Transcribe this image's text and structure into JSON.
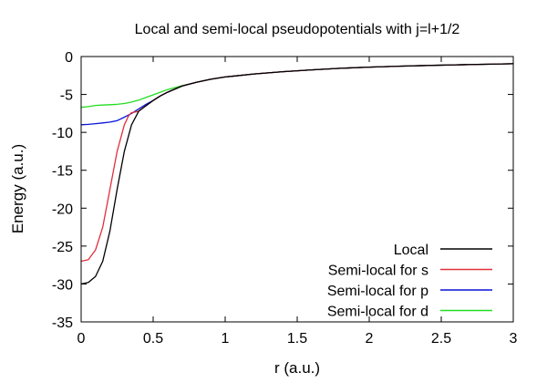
{
  "chart_data": {
    "type": "line",
    "title": "Local and semi-local pseudopotentials with j=l+1/2",
    "xlabel": "r (a.u.)",
    "ylabel": "Energy (a.u.)",
    "xlim": [
      0,
      3
    ],
    "ylim": [
      -35,
      0
    ],
    "xticks": [
      0,
      0.5,
      1,
      1.5,
      2,
      2.5,
      3
    ],
    "xtick_labels": [
      "0",
      "0.5",
      "1",
      "1.5",
      "2",
      "2.5",
      "3"
    ],
    "yticks": [
      0,
      -5,
      -10,
      -15,
      -20,
      -25,
      -30,
      -35
    ],
    "ytick_labels": [
      "0",
      "-5",
      "-10",
      "-15",
      "-20",
      "-25",
      "-30",
      "-35"
    ],
    "grid": false,
    "legend_position": "bottom-right",
    "series": [
      {
        "name": "Local",
        "color": "#000000",
        "x": [
          0,
          0.05,
          0.1,
          0.15,
          0.2,
          0.25,
          0.3,
          0.35,
          0.4,
          0.45,
          0.5,
          0.55,
          0.6,
          0.7,
          0.8,
          0.9,
          1.0,
          1.2,
          1.4,
          1.6,
          1.8,
          2.0,
          2.2,
          2.4,
          2.6,
          2.8,
          3.0
        ],
        "y": [
          -30.0,
          -29.8,
          -29.0,
          -27.0,
          -23.0,
          -17.5,
          -12.5,
          -9.0,
          -7.2,
          -6.5,
          -5.8,
          -5.2,
          -4.7,
          -3.9,
          -3.4,
          -3.0,
          -2.7,
          -2.3,
          -2.0,
          -1.75,
          -1.55,
          -1.4,
          -1.28,
          -1.18,
          -1.09,
          -1.02,
          -0.95
        ]
      },
      {
        "name": "Semi-local for s",
        "color": "#e0303a",
        "x": [
          0,
          0.05,
          0.1,
          0.15,
          0.2,
          0.25,
          0.3,
          0.33,
          0.35,
          0.38,
          0.4,
          0.45,
          0.5,
          0.55,
          0.6,
          0.7,
          0.8,
          0.9,
          1.0,
          1.2,
          1.4,
          1.6,
          1.8,
          2.0,
          2.2,
          2.4,
          2.6,
          2.8,
          3.0
        ],
        "y": [
          -27.0,
          -26.8,
          -25.5,
          -22.5,
          -17.5,
          -12.5,
          -9.0,
          -7.8,
          -7.4,
          -7.3,
          -7.2,
          -6.5,
          -5.8,
          -5.2,
          -4.7,
          -3.9,
          -3.4,
          -3.0,
          -2.7,
          -2.3,
          -2.0,
          -1.75,
          -1.55,
          -1.4,
          -1.28,
          -1.18,
          -1.09,
          -1.02,
          -0.95
        ]
      },
      {
        "name": "Semi-local for p",
        "color": "#0a14d8",
        "x": [
          0,
          0.05,
          0.1,
          0.15,
          0.2,
          0.25,
          0.3,
          0.35,
          0.4,
          0.45,
          0.5,
          0.55,
          0.6,
          0.7,
          0.8,
          0.9,
          1.0,
          1.2,
          1.4,
          1.6,
          1.8,
          2.0,
          2.2,
          2.4,
          2.6,
          2.8,
          3.0
        ],
        "y": [
          -9.0,
          -8.95,
          -8.85,
          -8.75,
          -8.65,
          -8.45,
          -8.0,
          -7.5,
          -6.9,
          -6.3,
          -5.8,
          -5.2,
          -4.7,
          -3.9,
          -3.4,
          -3.0,
          -2.7,
          -2.3,
          -2.0,
          -1.75,
          -1.55,
          -1.4,
          -1.28,
          -1.18,
          -1.09,
          -1.02,
          -0.95
        ]
      },
      {
        "name": "Semi-local for d",
        "color": "#22dd22",
        "x": [
          0,
          0.05,
          0.1,
          0.15,
          0.2,
          0.25,
          0.3,
          0.35,
          0.4,
          0.45,
          0.5,
          0.55,
          0.6,
          0.7,
          0.8,
          0.9,
          1.0,
          1.2,
          1.4,
          1.6,
          1.8,
          2.0,
          2.2,
          2.4,
          2.6,
          2.8,
          3.0
        ],
        "y": [
          -6.7,
          -6.6,
          -6.45,
          -6.4,
          -6.35,
          -6.3,
          -6.2,
          -6.0,
          -5.75,
          -5.4,
          -5.05,
          -4.7,
          -4.35,
          -3.85,
          -3.4,
          -3.0,
          -2.7,
          -2.3,
          -2.0,
          -1.75,
          -1.55,
          -1.4,
          -1.28,
          -1.18,
          -1.09,
          -1.02,
          -0.95
        ]
      }
    ]
  }
}
